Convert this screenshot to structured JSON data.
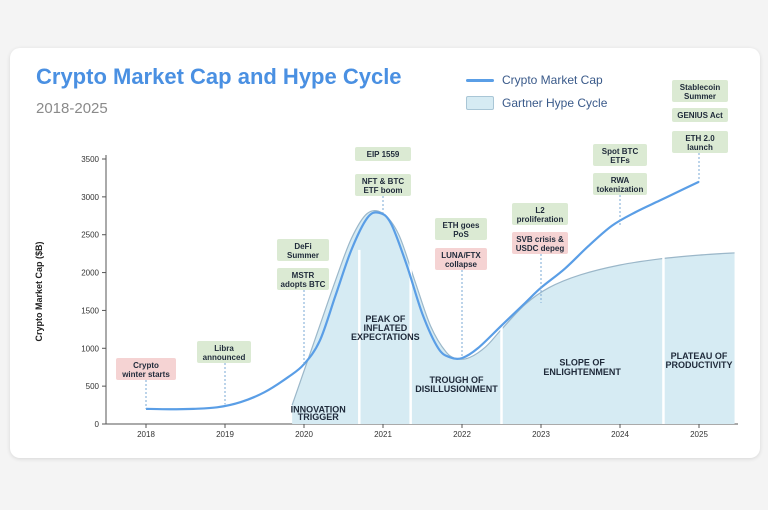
{
  "header": {
    "title": "Crypto Market Cap and Hype Cycle",
    "subtitle": "2018-2025"
  },
  "legend": {
    "line_label": "Crypto Market Cap",
    "area_label": "Gartner Hype Cycle"
  },
  "colors": {
    "line": "#5a9ee6",
    "area_fill": "#d6ebf3",
    "area_stroke": "#9bb7c9",
    "note_green": "#dbead3",
    "note_red": "#f5d3d3"
  },
  "chart_data": {
    "type": "line",
    "title": "Crypto Market Cap and Hype Cycle",
    "subtitle": "2018-2025",
    "xlabel": "",
    "ylabel": "Crypto Market Cap ($B)",
    "x_ticks": [
      "2018",
      "2019",
      "2020",
      "2021",
      "2022",
      "2023",
      "2024",
      "2025"
    ],
    "ylim": [
      0,
      3500
    ],
    "y_ticks": [
      0,
      500,
      1000,
      1500,
      2000,
      2500,
      3000,
      3500
    ],
    "series": [
      {
        "name": "Crypto Market Cap",
        "x": [
          2018.0,
          2018.3,
          2018.6,
          2018.9,
          2019.2,
          2019.5,
          2019.8,
          2020.0,
          2020.2,
          2020.4,
          2020.6,
          2020.8,
          2020.95,
          2021.1,
          2021.3,
          2021.5,
          2021.7,
          2021.85,
          2022.0,
          2022.2,
          2022.5,
          2022.8,
          2023.0,
          2023.3,
          2023.6,
          2023.9,
          2024.2,
          2024.5,
          2024.8,
          2025.0
        ],
        "values": [
          200,
          195,
          200,
          220,
          290,
          420,
          620,
          790,
          1100,
          1700,
          2300,
          2720,
          2790,
          2650,
          2100,
          1450,
          1000,
          880,
          870,
          1000,
          1300,
          1600,
          1800,
          2050,
          2350,
          2620,
          2800,
          2950,
          3100,
          3200
        ]
      },
      {
        "name": "Gartner Hype Cycle",
        "x": [
          2019.85,
          2020.0,
          2020.2,
          2020.4,
          2020.6,
          2020.8,
          2021.0,
          2021.2,
          2021.4,
          2021.6,
          2021.8,
          2021.95,
          2022.1,
          2022.3,
          2022.5,
          2022.8,
          2023.1,
          2023.5,
          2024.0,
          2024.5,
          2025.0,
          2025.45
        ],
        "values": [
          250,
          700,
          1300,
          1900,
          2450,
          2780,
          2780,
          2500,
          1900,
          1300,
          950,
          860,
          880,
          1020,
          1250,
          1580,
          1800,
          1970,
          2100,
          2180,
          2230,
          2260
        ]
      }
    ],
    "phases": [
      {
        "label": "INNOVATION TRIGGER",
        "from": 2019.85,
        "to": 2020.7
      },
      {
        "label": "PEAK OF INFLATED EXPECTATIONS",
        "from": 2020.7,
        "to": 2021.35
      },
      {
        "label": "TROUGH OF DISILLUSIONMENT",
        "from": 2021.35,
        "to": 2022.5
      },
      {
        "label": "SLOPE OF ENLIGHTENMENT",
        "from": 2022.5,
        "to": 2024.55
      },
      {
        "label": "PLATEAU OF PRODUCTIVITY",
        "from": 2024.55,
        "to": 2025.45
      }
    ],
    "annotations": [
      {
        "text": "Crypto winter starts",
        "lines": [
          "Crypto",
          "winter starts"
        ],
        "x": 2018.0,
        "value": 200,
        "kind": "negative"
      },
      {
        "text": "Libra announced",
        "lines": [
          "Libra",
          "announced"
        ],
        "x": 2019.0,
        "value": 260,
        "kind": "positive"
      },
      {
        "text": "DeFi Summer",
        "lines": [
          "DeFi",
          "Summer"
        ],
        "x": 2020.0,
        "value": 790,
        "kind": "positive"
      },
      {
        "text": "MSTR adopts BTC",
        "lines": [
          "MSTR",
          "adopts BTC"
        ],
        "x": 2020.0,
        "value": 790,
        "kind": "positive"
      },
      {
        "text": "EIP 1559",
        "lines": [
          "EIP 1559"
        ],
        "x": 2021.0,
        "value": 2790,
        "kind": "positive"
      },
      {
        "text": "NFT & BTC ETF boom",
        "lines": [
          "NFT & BTC",
          "ETF boom"
        ],
        "x": 2021.0,
        "value": 2790,
        "kind": "positive"
      },
      {
        "text": "ETH goes PoS",
        "lines": [
          "ETH goes",
          "PoS"
        ],
        "x": 2022.0,
        "value": 870,
        "kind": "positive"
      },
      {
        "text": "LUNA/FTX collapse",
        "lines": [
          "LUNA/FTX",
          "collapse"
        ],
        "x": 2022.0,
        "value": 870,
        "kind": "negative"
      },
      {
        "text": "L2 proliferation",
        "lines": [
          "L2",
          "proliferation"
        ],
        "x": 2023.0,
        "value": 1600,
        "kind": "positive"
      },
      {
        "text": "SVB crisis & USDC depeg",
        "lines": [
          "SVB crisis &",
          "USDC depeg"
        ],
        "x": 2023.0,
        "value": 1600,
        "kind": "negative"
      },
      {
        "text": "Spot BTC ETFs",
        "lines": [
          "Spot BTC",
          "ETFs"
        ],
        "x": 2024.0,
        "value": 2620,
        "kind": "positive"
      },
      {
        "text": "RWA tokenization",
        "lines": [
          "RWA",
          "tokenization"
        ],
        "x": 2024.0,
        "value": 2620,
        "kind": "positive"
      },
      {
        "text": "Stablecoin Summer",
        "lines": [
          "Stablecoin",
          "Summer"
        ],
        "x": 2025.0,
        "value": 3200,
        "kind": "positive"
      },
      {
        "text": "GENIUS Act",
        "lines": [
          "GENIUS Act"
        ],
        "x": 2025.0,
        "value": 3200,
        "kind": "positive"
      },
      {
        "text": "ETH 2.0 launch",
        "lines": [
          "ETH 2.0",
          "launch"
        ],
        "x": 2025.0,
        "value": 3200,
        "kind": "positive"
      }
    ]
  }
}
